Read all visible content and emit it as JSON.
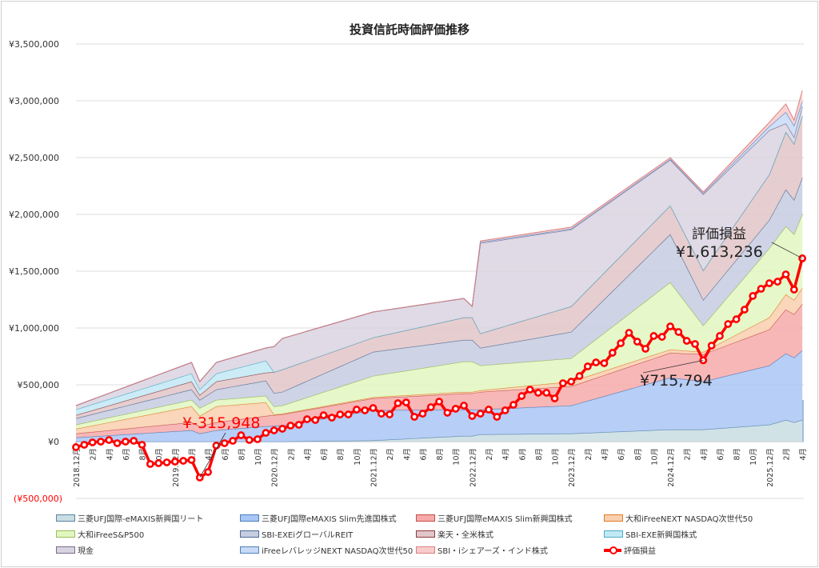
{
  "chart_data": {
    "type": "area",
    "title": "投資信託時価評価推移",
    "xlabel": "",
    "ylabel": "",
    "ylim": [
      -500000,
      3500000
    ],
    "grid": true,
    "legend_placement": "bottom",
    "y_ticks": [
      {
        "value": 3500000,
        "label": "¥3,500,000"
      },
      {
        "value": 3000000,
        "label": "¥3,000,000"
      },
      {
        "value": 2500000,
        "label": "¥2,500,000"
      },
      {
        "value": 2000000,
        "label": "¥2,000,000"
      },
      {
        "value": 1500000,
        "label": "¥1,500,000"
      },
      {
        "value": 1000000,
        "label": "¥1,000,000"
      },
      {
        "value": 500000,
        "label": "¥500,000"
      },
      {
        "value": 0,
        "label": "¥0"
      },
      {
        "value": -500000,
        "label": "(¥500,000)"
      }
    ],
    "x_tick_labels": [
      "2018.12月",
      "2月",
      "4月",
      "6月",
      "8月",
      "10月",
      "2019.12月",
      "2月",
      "4月",
      "6月",
      "8月",
      "10月",
      "2020.12月",
      "2月",
      "4月",
      "6月",
      "8月",
      "10月",
      "2021.12月",
      "2月",
      "4月",
      "6月",
      "8月",
      "10月",
      "2022.12月",
      "2月",
      "4月",
      "6月",
      "8月",
      "10月",
      "2023.12月",
      "2月",
      "4月",
      "6月",
      "8月",
      "10月",
      "2024.12月",
      "2月",
      "4月",
      "6月",
      "8月",
      "10月",
      "2025.12月",
      "2月",
      "4月"
    ],
    "month_count": 89,
    "stacked_area_anchor_months": [
      0,
      14,
      15,
      17,
      23,
      24,
      25,
      36,
      47,
      48,
      49,
      60,
      72,
      76,
      84,
      86,
      87,
      88
    ],
    "series": [
      {
        "name": "三菱UFJ国際-eMAXIS新興国リート",
        "fill": "#c9dde3",
        "stroke": "#5a87a3",
        "values": [
          0,
          0,
          0,
          0,
          0,
          0,
          0,
          10000,
          49000,
          49000,
          63000,
          70000,
          106000,
          106000,
          148000,
          190000,
          169000,
          190000
        ]
      },
      {
        "name": "三菱UFJ国際eMAXIS Slim先進国株式",
        "fill": "#aac6f6",
        "stroke": "#4a7ebb",
        "values": [
          35000,
          99000,
          70000,
          99000,
          134000,
          138000,
          141000,
          265000,
          233000,
          233000,
          219000,
          247000,
          457000,
          422000,
          521000,
          585000,
          570000,
          613000
        ]
      },
      {
        "name": "三菱UFJ国際eMAXIS Slim新興国株式",
        "fill": "#f7aaaa",
        "stroke": "#c0504d",
        "values": [
          35000,
          70000,
          64000,
          70000,
          91000,
          95000,
          98000,
          105000,
          141000,
          141000,
          155000,
          169000,
          217000,
          240000,
          317000,
          387000,
          381000,
          408000
        ]
      },
      {
        "name": "大和iFreeNEXT NASDAQ次世代50",
        "fill": "#f9cfae",
        "stroke": "#e07b2a",
        "values": [
          42000,
          141000,
          91000,
          141000,
          120000,
          5000,
          6000,
          10000,
          14000,
          14000,
          14000,
          42000,
          30000,
          21000,
          106000,
          134000,
          126000,
          141000
        ]
      },
      {
        "name": "大和iFreeS&P500",
        "fill": "#e2f7bf",
        "stroke": "#9bbb59",
        "values": [
          36000,
          56000,
          70000,
          56000,
          57000,
          70000,
          72000,
          187000,
          267000,
          267000,
          218000,
          204000,
          591000,
          232000,
          608000,
          598000,
          578000,
          648000
        ]
      },
      {
        "name": "SBI-EXEiグローバルREIT",
        "fill": "#c5cde0",
        "stroke": "#4f6a96",
        "values": [
          56000,
          92000,
          71000,
          92000,
          133000,
          118000,
          120000,
          212000,
          190000,
          190000,
          155000,
          233000,
          423000,
          225000,
          250000,
          324000,
          303000,
          324000
        ]
      },
      {
        "name": "楽天・全米株式",
        "fill": "#e2c6c8",
        "stroke": "#8c3b3b",
        "values": [
          28000,
          70000,
          42000,
          70000,
          71000,
          185000,
          197000,
          126000,
          198000,
          198000,
          127000,
          225000,
          253000,
          261000,
          400000,
          507000,
          493000,
          542000
        ]
      },
      {
        "name": "SBI-EXE新興国株式",
        "fill": "#c2e9f6",
        "stroke": "#4bacc6",
        "values": [
          50000,
          70000,
          50000,
          70000,
          105000,
          0,
          0,
          0,
          0,
          0,
          0,
          0,
          0,
          0,
          0,
          0,
          0,
          0
        ]
      },
      {
        "name": "現金",
        "fill": "#d9d3e1",
        "stroke": "#7a6a8c",
        "values": [
          35000,
          99000,
          70000,
          99000,
          113000,
          225000,
          274000,
          226000,
          168000,
          98000,
          795000,
          676000,
          402000,
          669000,
          389000,
          75000,
          60000,
          84000
        ]
      },
      {
        "name": "iFreeレバレッジNEXT NASDAQ次世代50",
        "fill": "#c8daf7",
        "stroke": "#4f81bd",
        "values": [
          0,
          0,
          0,
          0,
          0,
          0,
          0,
          0,
          0,
          0,
          10000,
          8000,
          8000,
          10000,
          35000,
          100000,
          100000,
          43000
        ]
      },
      {
        "name": "SBI・iシェアーズ・インド株式",
        "fill": "#f9cccc",
        "stroke": "#d98080",
        "values": [
          0,
          0,
          0,
          0,
          0,
          0,
          0,
          0,
          0,
          0,
          10000,
          14000,
          13000,
          11000,
          36000,
          72000,
          51000,
          98000
        ]
      }
    ],
    "line_series": {
      "name": "評価損益",
      "color": "#ff0000",
      "values": [
        -49000,
        -28000,
        -7000,
        0,
        14000,
        -14000,
        0,
        7000,
        -28000,
        -197000,
        -190000,
        -183000,
        -176000,
        -169000,
        -162000,
        -315948,
        -268000,
        -35000,
        -14000,
        7000,
        56000,
        14000,
        21000,
        77000,
        99000,
        113000,
        141000,
        148000,
        197000,
        190000,
        232000,
        211000,
        239000,
        239000,
        282000,
        275000,
        296000,
        246000,
        239000,
        338000,
        345000,
        218000,
        246000,
        303000,
        352000,
        254000,
        289000,
        317000,
        225000,
        246000,
        282000,
        218000,
        275000,
        324000,
        401000,
        458000,
        430000,
        430000,
        380000,
        514000,
        528000,
        577000,
        662000,
        697000,
        690000,
        782000,
        866000,
        958000,
        880000,
        817000,
        930000,
        922000,
        1014000,
        965000,
        887000,
        859000,
        715794,
        845000,
        930000,
        1035000,
        1077000,
        1162000,
        1282000,
        1345000,
        1394000,
        1408000,
        1472000,
        1338000,
        1613236
      ]
    },
    "annotations": [
      {
        "month": 15,
        "text": "¥-315,948",
        "color": "#ff0000"
      },
      {
        "month": 76,
        "text": "¥715,794",
        "color": "#222222"
      },
      {
        "month": 88,
        "title": "評価損益",
        "text": "¥1,613,236",
        "color": "#222222"
      }
    ]
  }
}
